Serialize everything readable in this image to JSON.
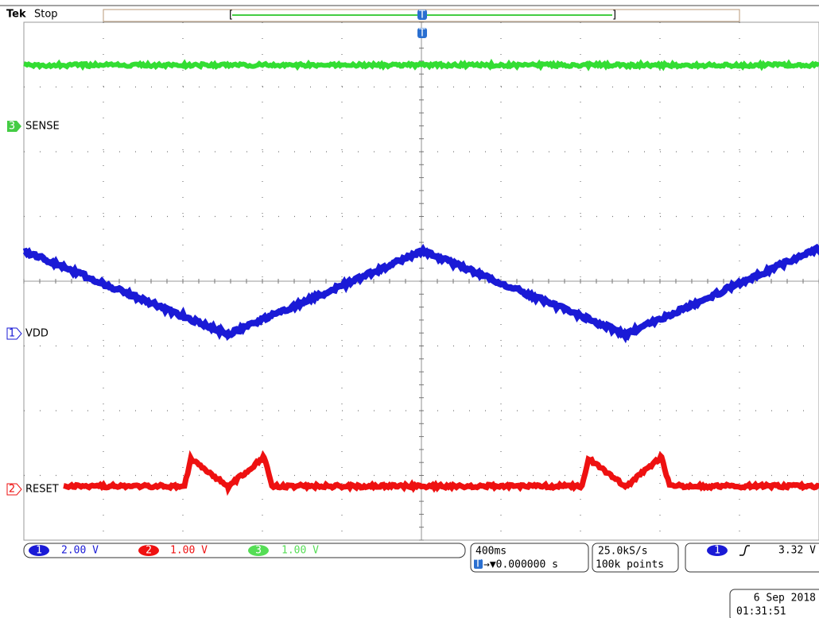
{
  "header": {
    "brand": "Tek",
    "status": "Stop",
    "trigger_marker": "T"
  },
  "channels": [
    {
      "number": "3",
      "label": "SENSE"
    },
    {
      "number": "1",
      "label": "VDD"
    },
    {
      "number": "2",
      "label": "RESET"
    }
  ],
  "readouts": {
    "channels": [
      {
        "number": "1",
        "scale": "2.00 V"
      },
      {
        "number": "2",
        "scale": "1.00 V"
      },
      {
        "number": "3",
        "scale": "1.00 V"
      }
    ],
    "timebase": {
      "scale": "400ms",
      "marker": "T",
      "position": "→▼0.000000 s"
    },
    "acquisition": {
      "rate": "25.0kS/s",
      "length": "100k points"
    },
    "trigger": {
      "source": "1",
      "level": "3.32 V"
    }
  },
  "timestamp": {
    "date": "6 Sep 2018",
    "time": "01:31:51"
  }
}
